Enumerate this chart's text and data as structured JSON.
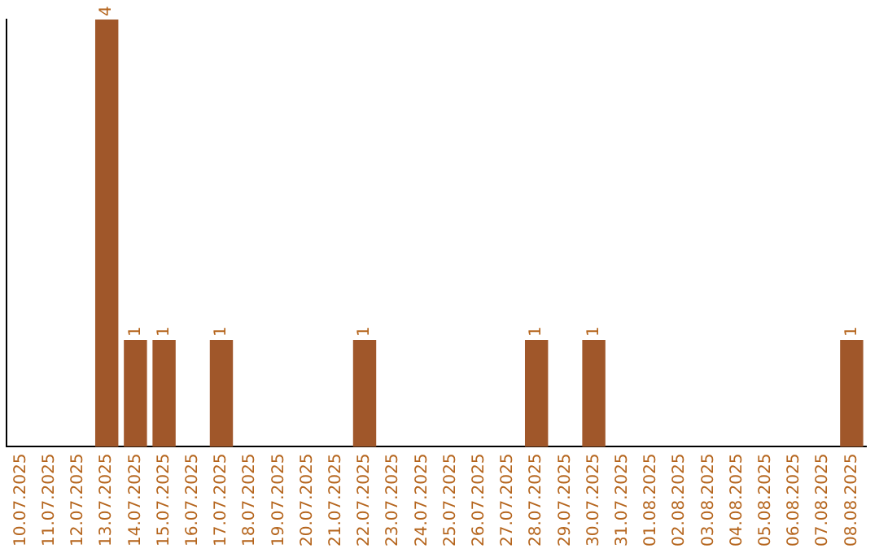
{
  "chart_data": {
    "type": "bar",
    "categories": [
      "10.07.2025",
      "11.07.2025",
      "12.07.2025",
      "13.07.2025",
      "14.07.2025",
      "15.07.2025",
      "16.07.2025",
      "17.07.2025",
      "18.07.2025",
      "19.07.2025",
      "20.07.2025",
      "21.07.2025",
      "22.07.2025",
      "23.07.2025",
      "24.07.2025",
      "25.07.2025",
      "26.07.2025",
      "27.07.2025",
      "28.07.2025",
      "29.07.2025",
      "30.07.2025",
      "31.07.2025",
      "01.08.2025",
      "02.08.2025",
      "03.08.2025",
      "04.08.2025",
      "05.08.2025",
      "06.08.2025",
      "07.08.2025",
      "08.08.2025"
    ],
    "values": [
      0,
      0,
      0,
      4,
      1,
      1,
      0,
      1,
      0,
      0,
      0,
      0,
      1,
      0,
      0,
      0,
      0,
      0,
      1,
      0,
      1,
      0,
      0,
      0,
      0,
      0,
      0,
      0,
      0,
      1
    ],
    "value_labels": [
      null,
      null,
      null,
      "4",
      "1",
      "1",
      null,
      "1",
      null,
      null,
      null,
      null,
      "1",
      null,
      null,
      null,
      null,
      null,
      "1",
      null,
      "1",
      null,
      null,
      null,
      null,
      null,
      null,
      null,
      null,
      "1"
    ],
    "color": "#a0572a",
    "grid": false,
    "legend": false,
    "tick_labels": "x"
  }
}
